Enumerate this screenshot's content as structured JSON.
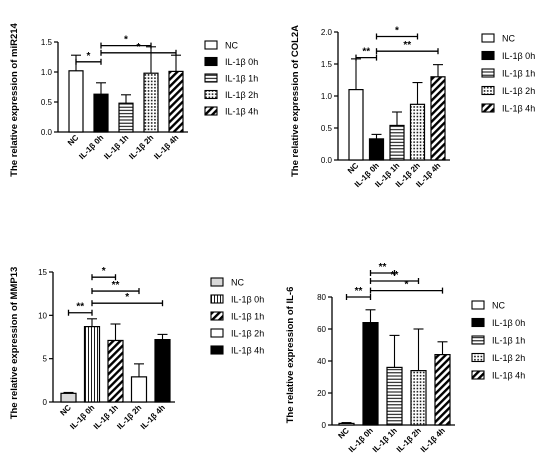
{
  "chart_data": [
    {
      "type": "bar",
      "title": "",
      "ylabel": "The relative expression of miR214",
      "xlabel": "",
      "categories": [
        "NC",
        "IL-1β 0h",
        "IL-1β 1h",
        "IL-1β 2h",
        "IL-1β 4h"
      ],
      "values": [
        1.02,
        0.63,
        0.48,
        0.98,
        1.01
      ],
      "errors": [
        0.26,
        0.19,
        0.14,
        0.44,
        0.27
      ],
      "fills": [
        "white",
        "black",
        "hlines",
        "dots",
        "diag"
      ],
      "ylim": [
        0,
        1.5
      ],
      "yticks": [
        0,
        0.5,
        1.0,
        1.5
      ],
      "ytick_labels": [
        "0.0",
        "0.5",
        "1.0",
        "1.5"
      ],
      "legend_position": "right",
      "significance": [
        {
          "from": 0,
          "to": 1,
          "label": "*",
          "level": 1.17
        },
        {
          "from": 1,
          "to": 3,
          "label": "*",
          "level": 1.44
        },
        {
          "from": 1,
          "to": 4,
          "label": "*",
          "level": 1.32
        }
      ]
    },
    {
      "type": "bar",
      "title": "",
      "ylabel": "The relative expression of COL2A",
      "xlabel": "",
      "categories": [
        "NC",
        "IL-1β 0h",
        "IL-1β 1h",
        "IL-1β 2h",
        "IL-1β 4h"
      ],
      "values": [
        1.1,
        0.33,
        0.54,
        0.87,
        1.3
      ],
      "errors": [
        0.48,
        0.07,
        0.21,
        0.34,
        0.19
      ],
      "fills": [
        "white",
        "black",
        "hlines",
        "dots",
        "diag"
      ],
      "ylim": [
        0,
        2.0
      ],
      "yticks": [
        0,
        0.5,
        1.0,
        1.5,
        2.0
      ],
      "ytick_labels": [
        "0.0",
        "0.5",
        "1.0",
        "1.5",
        "2.0"
      ],
      "legend_position": "right",
      "significance": [
        {
          "from": 0,
          "to": 1,
          "label": "**",
          "level": 1.6
        },
        {
          "from": 1,
          "to": 3,
          "label": "*",
          "level": 1.93
        },
        {
          "from": 1,
          "to": 4,
          "label": "**",
          "level": 1.7
        }
      ]
    },
    {
      "type": "bar",
      "title": "",
      "ylabel": "The relative expression of MMP13",
      "xlabel": "",
      "categories": [
        "NC",
        "IL-1β 0h",
        "IL-1β 1h",
        "IL-1β 2h",
        "IL-1β 4h"
      ],
      "values": [
        1.0,
        8.7,
        7.1,
        2.9,
        7.2
      ],
      "errors": [
        0.1,
        0.9,
        1.9,
        1.5,
        0.6
      ],
      "fills": [
        "lightgray",
        "vlines",
        "diag",
        "white",
        "black"
      ],
      "ylim": [
        0,
        15
      ],
      "yticks": [
        0,
        5,
        10,
        15
      ],
      "ytick_labels": [
        "0",
        "5",
        "10",
        "15"
      ],
      "legend_position": "right",
      "significance": [
        {
          "from": 0,
          "to": 1,
          "label": "**",
          "level": 10.3
        },
        {
          "from": 1,
          "to": 2,
          "label": "*",
          "level": 14.4
        },
        {
          "from": 1,
          "to": 3,
          "label": "**",
          "level": 12.8
        },
        {
          "from": 1,
          "to": 4,
          "label": "*",
          "level": 11.4
        }
      ]
    },
    {
      "type": "bar",
      "title": "",
      "ylabel": "The relative expression of IL-6",
      "xlabel": "",
      "categories": [
        "NC",
        "IL-1β 0h",
        "IL-1β 1h",
        "IL-1β 2h",
        "IL-1β 4h"
      ],
      "values": [
        1.0,
        64,
        36,
        34,
        44
      ],
      "errors": [
        0.5,
        8,
        20,
        26,
        8
      ],
      "fills": [
        "white",
        "black",
        "hlines",
        "dots",
        "diag"
      ],
      "ylim": [
        0,
        80
      ],
      "yticks": [
        0,
        20,
        40,
        60,
        80
      ],
      "ytick_labels": [
        "0",
        "20",
        "40",
        "60",
        "80"
      ],
      "legend_position": "right",
      "significance": [
        {
          "from": 0,
          "to": 1,
          "label": "**",
          "level": 80
        },
        {
          "from": 1,
          "to": 2,
          "label": "**",
          "level": 95
        },
        {
          "from": 1,
          "to": 3,
          "label": "**",
          "level": 90
        },
        {
          "from": 1,
          "to": 4,
          "label": "*",
          "level": 84
        }
      ]
    }
  ]
}
